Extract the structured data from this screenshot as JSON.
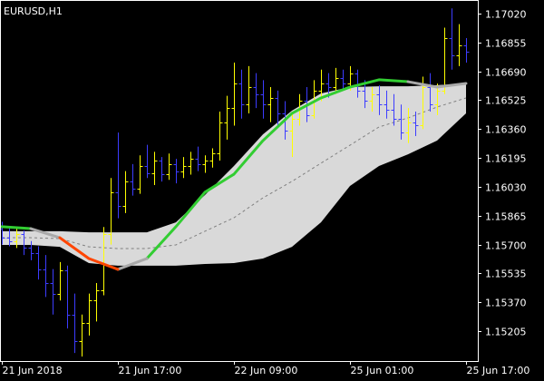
{
  "chart_data": {
    "type": "ohlc",
    "title": "EURUSD,H1",
    "up_color": "#ffff00",
    "down_color": "#3c3cff",
    "categories": [
      "21 Jun 2018",
      null,
      null,
      null,
      null,
      null,
      null,
      null,
      null,
      null,
      null,
      null,
      null,
      null,
      null,
      null,
      "21 Jun 17:00",
      null,
      null,
      null,
      null,
      null,
      null,
      null,
      null,
      null,
      null,
      null,
      null,
      null,
      null,
      null,
      "22 Jun 09:00",
      null,
      null,
      null,
      null,
      null,
      null,
      null,
      null,
      null,
      null,
      null,
      null,
      null,
      null,
      null,
      "25 Jun 01:00",
      null,
      null,
      null,
      null,
      null,
      null,
      null,
      null,
      null,
      null,
      null,
      null,
      null,
      null,
      null,
      "25 Jun 17:00"
    ],
    "open": [
      1.1579,
      1.1574,
      1.1572,
      1.1576,
      1.1568,
      1.1565,
      1.1556,
      1.1548,
      1.1542,
      1.1555,
      1.153,
      1.1515,
      1.1525,
      1.1538,
      1.1544,
      1.1576,
      1.16,
      1.1592,
      1.1606,
      1.1602,
      1.1615,
      1.1611,
      1.1618,
      1.161,
      1.1616,
      1.1612,
      1.1615,
      1.1619,
      1.1616,
      1.1618,
      1.1622,
      1.164,
      1.1648,
      1.1662,
      1.165,
      1.166,
      1.1656,
      1.165,
      1.1654,
      1.1645,
      1.1635,
      1.1642,
      1.1652,
      1.1644,
      1.1658,
      1.1662,
      1.166,
      1.1665,
      1.1662,
      1.1668,
      1.1658,
      1.1652,
      1.1656,
      1.165,
      1.1647,
      1.1642,
      1.1634,
      1.164,
      1.1638,
      1.166,
      1.165,
      1.1658,
      1.1688,
      1.1678,
      1.1684
    ],
    "high": [
      1.1583,
      1.158,
      1.1579,
      1.1578,
      1.1572,
      1.1569,
      1.1564,
      1.1556,
      1.156,
      1.1558,
      1.1542,
      1.153,
      1.1542,
      1.1548,
      1.158,
      1.1608,
      1.1634,
      1.1612,
      1.1616,
      1.1621,
      1.1627,
      1.1623,
      1.162,
      1.1622,
      1.1619,
      1.162,
      1.1623,
      1.1626,
      1.1621,
      1.1625,
      1.1646,
      1.1655,
      1.1674,
      1.167,
      1.1672,
      1.1668,
      1.1664,
      1.166,
      1.1658,
      1.1652,
      1.1645,
      1.1656,
      1.166,
      1.1664,
      1.167,
      1.1668,
      1.1671,
      1.167,
      1.1672,
      1.167,
      1.1664,
      1.166,
      1.1661,
      1.1658,
      1.1656,
      1.165,
      1.1648,
      1.1646,
      1.1666,
      1.1668,
      1.1662,
      1.1694,
      1.1705,
      1.1696,
      1.1688
    ],
    "low": [
      1.157,
      1.1569,
      1.1568,
      1.1564,
      1.1561,
      1.155,
      1.154,
      1.153,
      1.1538,
      1.1522,
      1.1508,
      1.1506,
      1.1518,
      1.1526,
      1.1541,
      1.157,
      1.1585,
      1.1588,
      1.1598,
      1.1599,
      1.1608,
      1.1604,
      1.1606,
      1.1607,
      1.1605,
      1.1608,
      1.161,
      1.1612,
      1.1611,
      1.1614,
      1.1618,
      1.163,
      1.1638,
      1.1642,
      1.1645,
      1.1648,
      1.1642,
      1.164,
      1.1638,
      1.163,
      1.162,
      1.1638,
      1.164,
      1.1642,
      1.1652,
      1.1654,
      1.1656,
      1.1658,
      1.1658,
      1.1654,
      1.1648,
      1.1646,
      1.1644,
      1.1642,
      1.1638,
      1.163,
      1.1628,
      1.1632,
      1.1636,
      1.1646,
      1.1644,
      1.1656,
      1.167,
      1.1672,
      1.1674
    ],
    "close": [
      1.1574,
      1.1572,
      1.1576,
      1.1568,
      1.1565,
      1.1556,
      1.1548,
      1.1542,
      1.1555,
      1.153,
      1.1515,
      1.1525,
      1.1538,
      1.1544,
      1.1576,
      1.16,
      1.1592,
      1.1606,
      1.1602,
      1.1615,
      1.1611,
      1.1618,
      1.161,
      1.1616,
      1.1612,
      1.1615,
      1.1619,
      1.1616,
      1.1618,
      1.1622,
      1.164,
      1.1648,
      1.1662,
      1.165,
      1.166,
      1.1656,
      1.165,
      1.1654,
      1.1645,
      1.1635,
      1.1642,
      1.1652,
      1.1644,
      1.1658,
      1.1662,
      1.166,
      1.1665,
      1.1662,
      1.1668,
      1.1658,
      1.1652,
      1.1656,
      1.165,
      1.1647,
      1.1642,
      1.1634,
      1.164,
      1.1638,
      1.166,
      1.165,
      1.1658,
      1.1688,
      1.1678,
      1.1684,
      1.168
    ],
    "ylim": [
      1.15034,
      1.17098
    ],
    "yticks": [
      {
        "value": 1.1702,
        "label": "1.17020"
      },
      1.16855,
      {
        "value": 1.1669,
        "label": "1.16690"
      },
      1.16525,
      {
        "value": 1.1636,
        "label": "1.16360"
      },
      1.16195,
      {
        "value": 1.1603,
        "label": "1.16030"
      },
      1.15865,
      {
        "value": 1.157,
        "label": "1.15700"
      },
      1.15535,
      {
        "value": 1.1537,
        "label": "1.15370"
      },
      1.15205
    ],
    "indicator": {
      "x": [
        0,
        4,
        8,
        12,
        16,
        20,
        24,
        28,
        32,
        36,
        40,
        44,
        48,
        52,
        56,
        60,
        64
      ],
      "band_color": "#d9d9d9",
      "middle_color": "#808080",
      "upper": [
        1.15776,
        1.15776,
        1.15776,
        1.1577,
        1.1577,
        1.1577,
        1.15827,
        1.15983,
        1.16149,
        1.1633,
        1.16465,
        1.16564,
        1.166,
        1.16605,
        1.16605,
        1.16611,
        1.16621
      ],
      "lower": [
        1.15698,
        1.15698,
        1.15687,
        1.15594,
        1.15579,
        1.15579,
        1.15579,
        1.15589,
        1.15594,
        1.1562,
        1.15687,
        1.15827,
        1.16035,
        1.16149,
        1.16216,
        1.16294,
        1.1645
      ],
      "middle": [
        1.15739,
        1.15739,
        1.15734,
        1.15687,
        1.15677,
        1.15677,
        1.15698,
        1.15776,
        1.15853,
        1.15967,
        1.16061,
        1.16165,
        1.16268,
        1.16372,
        1.16424,
        1.16486,
        1.16538
      ],
      "series": [
        {
          "color": "#32cd32",
          "values": [
            1.15802,
            1.15791,
            null,
            null,
            null,
            1.1562,
            1.15802,
            1.15999,
            1.16102,
            1.16294,
            1.1645,
            1.16538,
            1.166,
            1.16642,
            1.16631,
            null,
            null
          ]
        },
        {
          "color": "#a9a9a9",
          "values": [
            null,
            1.15791,
            1.15739,
            null,
            1.15558,
            1.1562,
            null,
            null,
            null,
            null,
            null,
            null,
            null,
            null,
            1.16631,
            1.166,
            1.16621
          ]
        },
        {
          "color": "#ff4500",
          "values": [
            null,
            null,
            1.15739,
            1.1562,
            1.15558,
            null,
            null,
            null,
            null,
            null,
            null,
            null,
            null,
            null,
            null,
            null,
            null
          ]
        }
      ]
    }
  }
}
